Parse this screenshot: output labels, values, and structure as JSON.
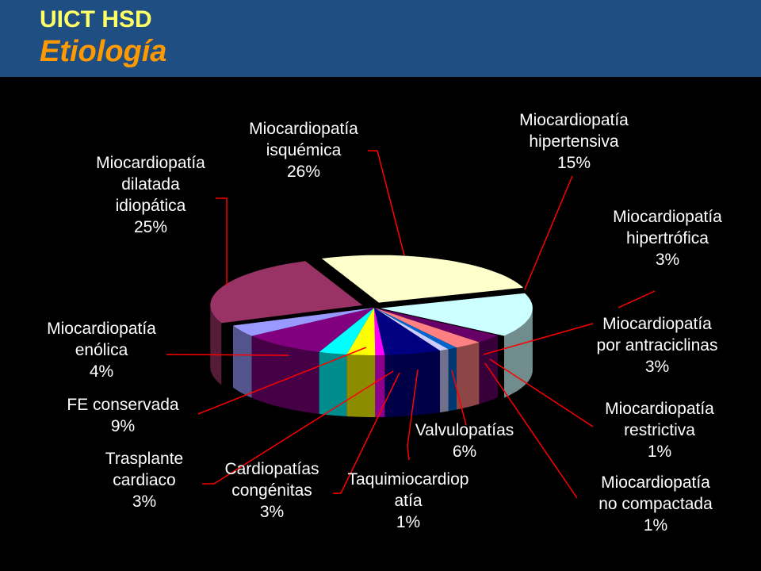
{
  "header": {
    "title": "UICT HSD",
    "subtitle": "Etiología",
    "title_color": "#ffff66",
    "subtitle_color": "#ff9900",
    "background": "#1f4e82"
  },
  "leader_color": "#ff0000",
  "chart_data": {
    "type": "pie",
    "style": "3d-exploded",
    "slices": [
      {
        "lines": [
          "Miocardiopatía",
          "isquémica"
        ],
        "pct_label": "26%",
        "value": 26,
        "color": "#ffffcc"
      },
      {
        "lines": [
          "Miocardiopatía",
          "hipertensiva"
        ],
        "pct_label": "15%",
        "value": 15,
        "color": "#ccffff"
      },
      {
        "lines": [
          "Miocardiopatía",
          "hipertrófica"
        ],
        "pct_label": "3%",
        "value": 3,
        "color": "#660066"
      },
      {
        "lines": [
          "Miocardiopatía",
          "por antraciclinas"
        ],
        "pct_label": "3%",
        "value": 3,
        "color": "#ff8080"
      },
      {
        "lines": [
          "Miocardiopatía",
          "restrictiva"
        ],
        "pct_label": "1%",
        "value": 1,
        "color": "#0066cc"
      },
      {
        "lines": [
          "Miocardiopatía",
          "no compactada"
        ],
        "pct_label": "1%",
        "value": 1,
        "color": "#ccccff"
      },
      {
        "lines": [
          "Valvulopatías"
        ],
        "pct_label": "6%",
        "value": 6,
        "color": "#000080"
      },
      {
        "lines": [
          "Taquimiocardiop",
          "atía"
        ],
        "pct_label": "1%",
        "value": 1,
        "color": "#ff00ff"
      },
      {
        "lines": [
          "Cardiopatías",
          "congénitas"
        ],
        "pct_label": "3%",
        "value": 3,
        "color": "#ffff00"
      },
      {
        "lines": [
          "Trasplante",
          "cardiaco"
        ],
        "pct_label": "3%",
        "value": 3,
        "color": "#00ffff"
      },
      {
        "lines": [
          "FE conservada"
        ],
        "pct_label": "9%",
        "value": 9,
        "color": "#800080"
      },
      {
        "lines": [
          "Miocardiopatía",
          "enólica"
        ],
        "pct_label": "4%",
        "value": 4,
        "color": "#9999ff"
      },
      {
        "lines": [
          "Miocardiopatía",
          "dilatada",
          "idiopática"
        ],
        "pct_label": "25%",
        "value": 25,
        "color": "#993366"
      }
    ]
  }
}
